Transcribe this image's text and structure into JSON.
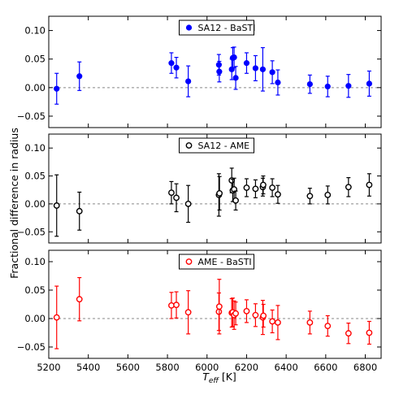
{
  "figure": {
    "ylabel": "Fractional difference in radius",
    "xlabel_main": "T",
    "xlabel_sub": "eff",
    "xlabel_unit": " [K]"
  },
  "chart_data": [
    {
      "type": "scatter",
      "legend": {
        "label": "SA12 - BaSTI",
        "placement": "top-center",
        "marker": "filled"
      },
      "color": "#0000ff",
      "filled": true,
      "xlim": [
        5200,
        6880
      ],
      "ylim": [
        -0.07,
        0.125
      ],
      "yticks": [
        "0.10",
        "0.05",
        "0.00",
        "−0.05"
      ],
      "ytick_values": [
        0.1,
        0.05,
        0.0,
        -0.05
      ],
      "zero_line": true,
      "points": [
        {
          "x": 5240,
          "y": -0.002,
          "err": 0.027
        },
        {
          "x": 5355,
          "y": 0.02,
          "err": 0.025
        },
        {
          "x": 5820,
          "y": 0.043,
          "err": 0.018
        },
        {
          "x": 5845,
          "y": 0.035,
          "err": 0.018
        },
        {
          "x": 5905,
          "y": 0.011,
          "err": 0.027
        },
        {
          "x": 6060,
          "y": 0.04,
          "err": 0.018
        },
        {
          "x": 6062,
          "y": 0.028,
          "err": 0.018
        },
        {
          "x": 6125,
          "y": 0.032,
          "err": 0.018
        },
        {
          "x": 6130,
          "y": 0.052,
          "err": 0.018
        },
        {
          "x": 6137,
          "y": 0.053,
          "err": 0.018
        },
        {
          "x": 6145,
          "y": 0.017,
          "err": 0.02
        },
        {
          "x": 6200,
          "y": 0.043,
          "err": 0.018
        },
        {
          "x": 6245,
          "y": 0.034,
          "err": 0.022
        },
        {
          "x": 6282,
          "y": 0.032,
          "err": 0.038
        },
        {
          "x": 6330,
          "y": 0.027,
          "err": 0.02
        },
        {
          "x": 6358,
          "y": 0.009,
          "err": 0.022
        },
        {
          "x": 6520,
          "y": 0.006,
          "err": 0.016
        },
        {
          "x": 6610,
          "y": 0.002,
          "err": 0.018
        },
        {
          "x": 6715,
          "y": 0.003,
          "err": 0.02
        },
        {
          "x": 6820,
          "y": 0.007,
          "err": 0.022
        }
      ]
    },
    {
      "type": "scatter",
      "legend": {
        "label": "SA12 - AME",
        "placement": "top-center",
        "marker": "open"
      },
      "color": "#000000",
      "filled": false,
      "xlim": [
        5200,
        6880
      ],
      "ylim": [
        -0.07,
        0.125
      ],
      "yticks": [
        "0.10",
        "0.05",
        "0.00",
        "−0.05"
      ],
      "ytick_values": [
        0.1,
        0.05,
        0.0,
        -0.05
      ],
      "zero_line": true,
      "points": [
        {
          "x": 5240,
          "y": -0.003,
          "err": 0.055
        },
        {
          "x": 5355,
          "y": -0.013,
          "err": 0.034
        },
        {
          "x": 5820,
          "y": 0.02,
          "err": 0.02
        },
        {
          "x": 5845,
          "y": 0.011,
          "err": 0.025
        },
        {
          "x": 5905,
          "y": 0.0,
          "err": 0.033
        },
        {
          "x": 6060,
          "y": 0.016,
          "err": 0.038
        },
        {
          "x": 6063,
          "y": 0.019,
          "err": 0.03
        },
        {
          "x": 6125,
          "y": 0.042,
          "err": 0.022
        },
        {
          "x": 6130,
          "y": 0.024,
          "err": 0.02
        },
        {
          "x": 6137,
          "y": 0.026,
          "err": 0.02
        },
        {
          "x": 6145,
          "y": 0.006,
          "err": 0.017
        },
        {
          "x": 6200,
          "y": 0.029,
          "err": 0.016
        },
        {
          "x": 6245,
          "y": 0.027,
          "err": 0.016
        },
        {
          "x": 6282,
          "y": 0.03,
          "err": 0.016
        },
        {
          "x": 6284,
          "y": 0.034,
          "err": 0.016
        },
        {
          "x": 6330,
          "y": 0.029,
          "err": 0.016
        },
        {
          "x": 6358,
          "y": 0.017,
          "err": 0.016
        },
        {
          "x": 6520,
          "y": 0.014,
          "err": 0.014
        },
        {
          "x": 6610,
          "y": 0.016,
          "err": 0.016
        },
        {
          "x": 6715,
          "y": 0.03,
          "err": 0.017
        },
        {
          "x": 6820,
          "y": 0.034,
          "err": 0.02
        }
      ]
    },
    {
      "type": "scatter",
      "legend": {
        "label": "AME - BaSTI",
        "placement": "top-center",
        "marker": "open"
      },
      "color": "#ff0000",
      "filled": false,
      "xlim": [
        5200,
        6880
      ],
      "ylim": [
        -0.07,
        0.12
      ],
      "yticks": [
        "0.10",
        "0.05",
        "0.00",
        "−0.05"
      ],
      "ytick_values": [
        0.1,
        0.05,
        0.0,
        -0.05
      ],
      "xticks": [
        "5200",
        "5400",
        "5600",
        "5800",
        "6000",
        "6200",
        "6400",
        "6600",
        "6800"
      ],
      "xtick_values": [
        5200,
        5400,
        5600,
        5800,
        6000,
        6200,
        6400,
        6600,
        6800
      ],
      "zero_line": true,
      "points": [
        {
          "x": 5240,
          "y": 0.002,
          "err": 0.055
        },
        {
          "x": 5355,
          "y": 0.034,
          "err": 0.038
        },
        {
          "x": 5820,
          "y": 0.023,
          "err": 0.023
        },
        {
          "x": 5845,
          "y": 0.024,
          "err": 0.023
        },
        {
          "x": 5905,
          "y": 0.011,
          "err": 0.038
        },
        {
          "x": 6060,
          "y": 0.012,
          "err": 0.033
        },
        {
          "x": 6062,
          "y": 0.021,
          "err": 0.048
        },
        {
          "x": 6125,
          "y": 0.01,
          "err": 0.025
        },
        {
          "x": 6130,
          "y": 0.011,
          "err": 0.025
        },
        {
          "x": 6137,
          "y": 0.006,
          "err": 0.025
        },
        {
          "x": 6145,
          "y": 0.009,
          "err": 0.02
        },
        {
          "x": 6200,
          "y": 0.013,
          "err": 0.02
        },
        {
          "x": 6245,
          "y": 0.006,
          "err": 0.02
        },
        {
          "x": 6282,
          "y": 0.002,
          "err": 0.03
        },
        {
          "x": 6285,
          "y": 0.005,
          "err": 0.02
        },
        {
          "x": 6330,
          "y": -0.005,
          "err": 0.02
        },
        {
          "x": 6358,
          "y": -0.007,
          "err": 0.03
        },
        {
          "x": 6520,
          "y": -0.007,
          "err": 0.02
        },
        {
          "x": 6610,
          "y": -0.013,
          "err": 0.018
        },
        {
          "x": 6715,
          "y": -0.026,
          "err": 0.018
        },
        {
          "x": 6820,
          "y": -0.025,
          "err": 0.02
        }
      ]
    }
  ]
}
